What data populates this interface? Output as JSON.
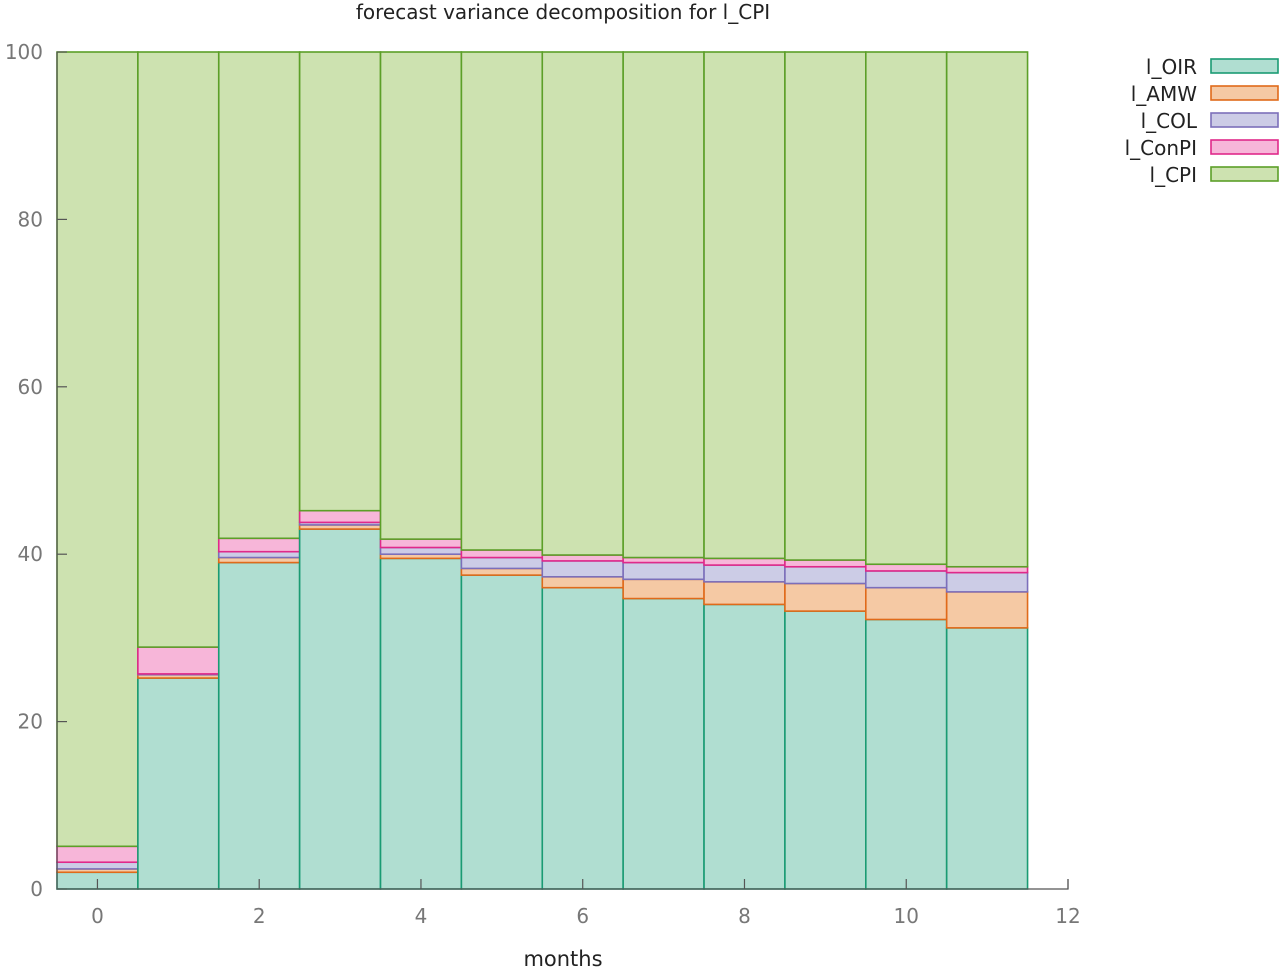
{
  "chart_data": {
    "type": "bar",
    "stacked": true,
    "title": "forecast variance decomposition for l_CPI",
    "xlabel": "months",
    "ylabel": "",
    "x": [
      0,
      1,
      2,
      3,
      4,
      5,
      6,
      7,
      8,
      9,
      10,
      11
    ],
    "xlim": [
      -0.5,
      12
    ],
    "ylim": [
      0,
      100
    ],
    "xticks": [
      "0",
      "2",
      "4",
      "6",
      "8",
      "10",
      "12"
    ],
    "yticks": [
      "0",
      "20",
      "40",
      "60",
      "80",
      "100"
    ],
    "grid": false,
    "legend_position": "top-right",
    "series": [
      {
        "name": "l_OIR",
        "fill": "#b0ded1",
        "stroke": "#1a9b73",
        "values": [
          2.0,
          25.2,
          39.0,
          43.0,
          39.5,
          37.5,
          36.0,
          34.7,
          34.0,
          33.2,
          32.2,
          31.2
        ]
      },
      {
        "name": "l_AMW",
        "fill": "#f5c9a4",
        "stroke": "#e06a1a",
        "values": [
          0.4,
          0.4,
          0.6,
          0.5,
          0.5,
          0.8,
          1.3,
          2.3,
          2.7,
          3.3,
          3.8,
          4.3
        ]
      },
      {
        "name": "l_COL",
        "fill": "#cccce6",
        "stroke": "#7c6fba",
        "values": [
          0.8,
          0.1,
          0.7,
          0.3,
          0.8,
          1.3,
          1.9,
          2.0,
          2.0,
          2.0,
          2.0,
          2.3
        ]
      },
      {
        "name": "l_ConPI",
        "fill": "#f7b6d9",
        "stroke": "#e0298a",
        "values": [
          1.9,
          3.2,
          1.6,
          1.4,
          1.0,
          0.9,
          0.7,
          0.6,
          0.8,
          0.8,
          0.8,
          0.7
        ]
      },
      {
        "name": "l_CPI",
        "fill": "#cde2b0",
        "stroke": "#5c9f28",
        "values": [
          94.9,
          71.1,
          58.1,
          54.8,
          58.2,
          59.5,
          60.1,
          60.4,
          60.5,
          60.7,
          61.2,
          61.5
        ]
      }
    ]
  }
}
